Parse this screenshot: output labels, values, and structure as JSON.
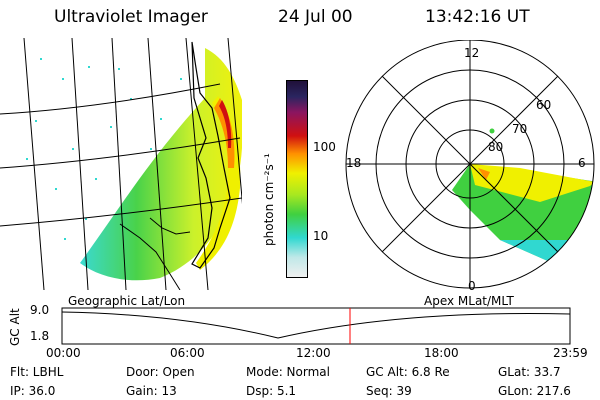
{
  "header": {
    "title": "Ultraviolet Imager",
    "date": "24 Jul 00",
    "time": "13:42:16 UT"
  },
  "colorbar": {
    "unit_label": "photon cm⁻²s⁻¹",
    "tick_labels": [
      "100",
      "10"
    ]
  },
  "polar": {
    "mlt_labels": [
      "12",
      "18",
      "6",
      "0"
    ],
    "lat_labels": [
      "60",
      "70",
      "80"
    ]
  },
  "panels": {
    "left_caption": "Geographic Lat/Lon",
    "right_caption": "Apex MLat/MLT"
  },
  "altitude_plot": {
    "ylabel": "GC Alt",
    "y_ticks": [
      "9.0",
      "1.8"
    ],
    "x_ticks": [
      "00:00",
      "06:00",
      "12:00",
      "18:00",
      "23:59"
    ],
    "marker_time": "13:42"
  },
  "info": {
    "flt": "Flt: LBHL",
    "ip": "IP: 36.0",
    "door": "Door: Open",
    "gain": "Gain: 13",
    "mode": "Mode: Normal",
    "dsp": "Dsp:    5.1",
    "gc_alt": "GC Alt: 6.8 Re",
    "seq": "Seq: 39",
    "glat": "GLat:  33.7",
    "glon": "GLon: 217.6"
  },
  "colors": {
    "marker": "#ff0000",
    "scale_low": "#f0f0f0",
    "scale_cyan": "#30d8d0",
    "scale_green": "#40d040",
    "scale_yellow": "#f0f000",
    "scale_orange": "#ff9000",
    "scale_red": "#d01010",
    "scale_top": "#20103a"
  }
}
